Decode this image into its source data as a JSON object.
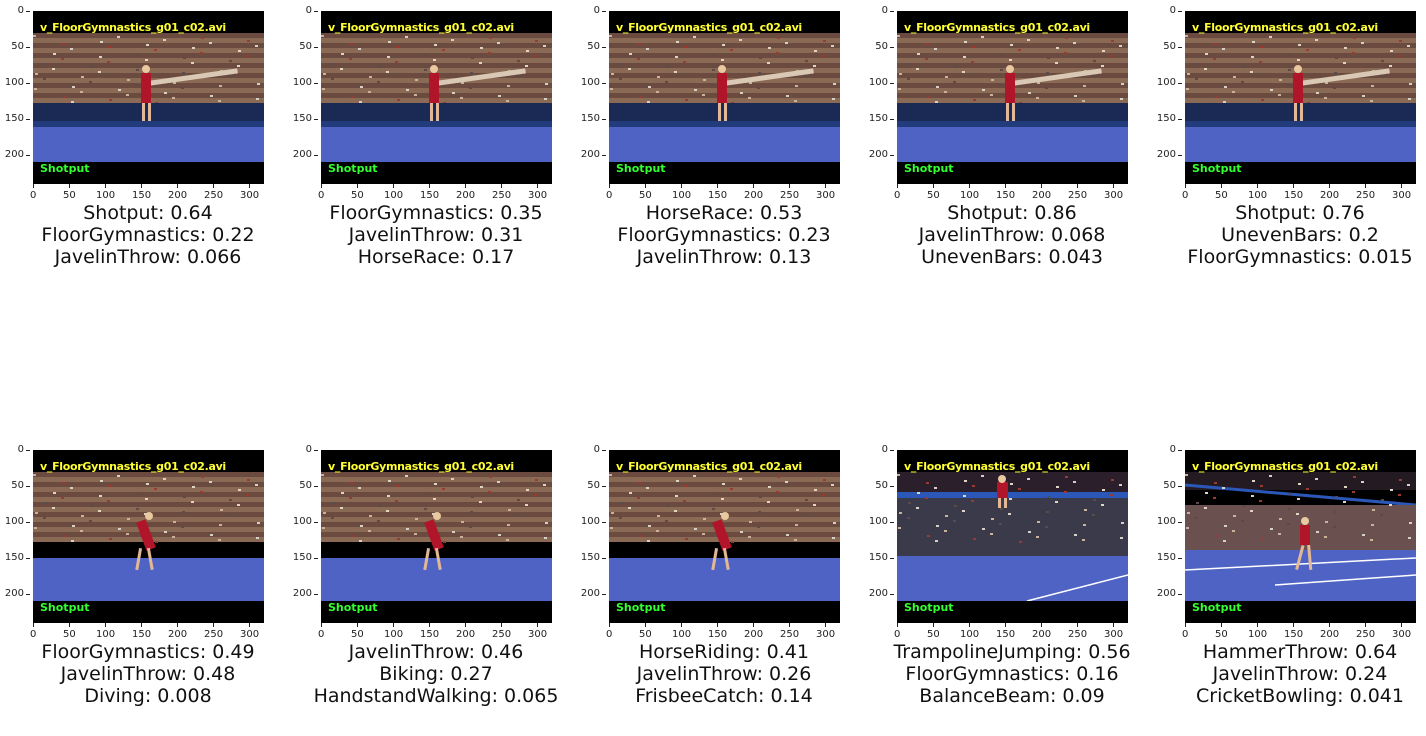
{
  "filename": "v_FloorGymnastics_g01_c02.avi",
  "overlay_prediction": "Shotput",
  "axis": {
    "y_ticks": [
      "0",
      "50",
      "100",
      "150",
      "200"
    ],
    "x_ticks": [
      "0",
      "50",
      "100",
      "150",
      "200",
      "250",
      "300"
    ]
  },
  "colors": {
    "title_overlay": "#ffff33",
    "pred_overlay": "#33ff33",
    "floor": "#4f63c4"
  },
  "panels": [
    {
      "scene": "beam",
      "predictions": [
        "Shotput: 0.64",
        "FloorGymnastics: 0.22",
        "JavelinThrow: 0.066"
      ]
    },
    {
      "scene": "beam",
      "predictions": [
        "FloorGymnastics: 0.35",
        "JavelinThrow: 0.31",
        "HorseRace: 0.17"
      ]
    },
    {
      "scene": "beam",
      "predictions": [
        "HorseRace: 0.53",
        "FloorGymnastics: 0.23",
        "JavelinThrow: 0.13"
      ]
    },
    {
      "scene": "beam",
      "predictions": [
        "Shotput: 0.86",
        "JavelinThrow: 0.068",
        "UnevenBars: 0.043"
      ]
    },
    {
      "scene": "beam",
      "predictions": [
        "Shotput: 0.76",
        "UnevenBars: 0.2",
        "FloorGymnastics: 0.015"
      ]
    },
    {
      "scene": "floor",
      "predictions": [
        "FloorGymnastics: 0.49",
        "JavelinThrow: 0.48",
        "Diving: 0.008"
      ]
    },
    {
      "scene": "floor",
      "predictions": [
        "JavelinThrow: 0.46",
        "Biking: 0.27",
        "HandstandWalking: 0.065"
      ]
    },
    {
      "scene": "floor",
      "predictions": [
        "HorseRiding: 0.41",
        "JavelinThrow: 0.26",
        "FrisbeeCatch: 0.14"
      ]
    },
    {
      "scene": "jump",
      "predictions": [
        "TrampolineJumping: 0.56",
        "FloorGymnastics: 0.16",
        "BalanceBeam: 0.09"
      ]
    },
    {
      "scene": "wide",
      "predictions": [
        "HammerThrow: 0.64",
        "JavelinThrow: 0.24",
        "CricketBowling: 0.041"
      ]
    }
  ]
}
